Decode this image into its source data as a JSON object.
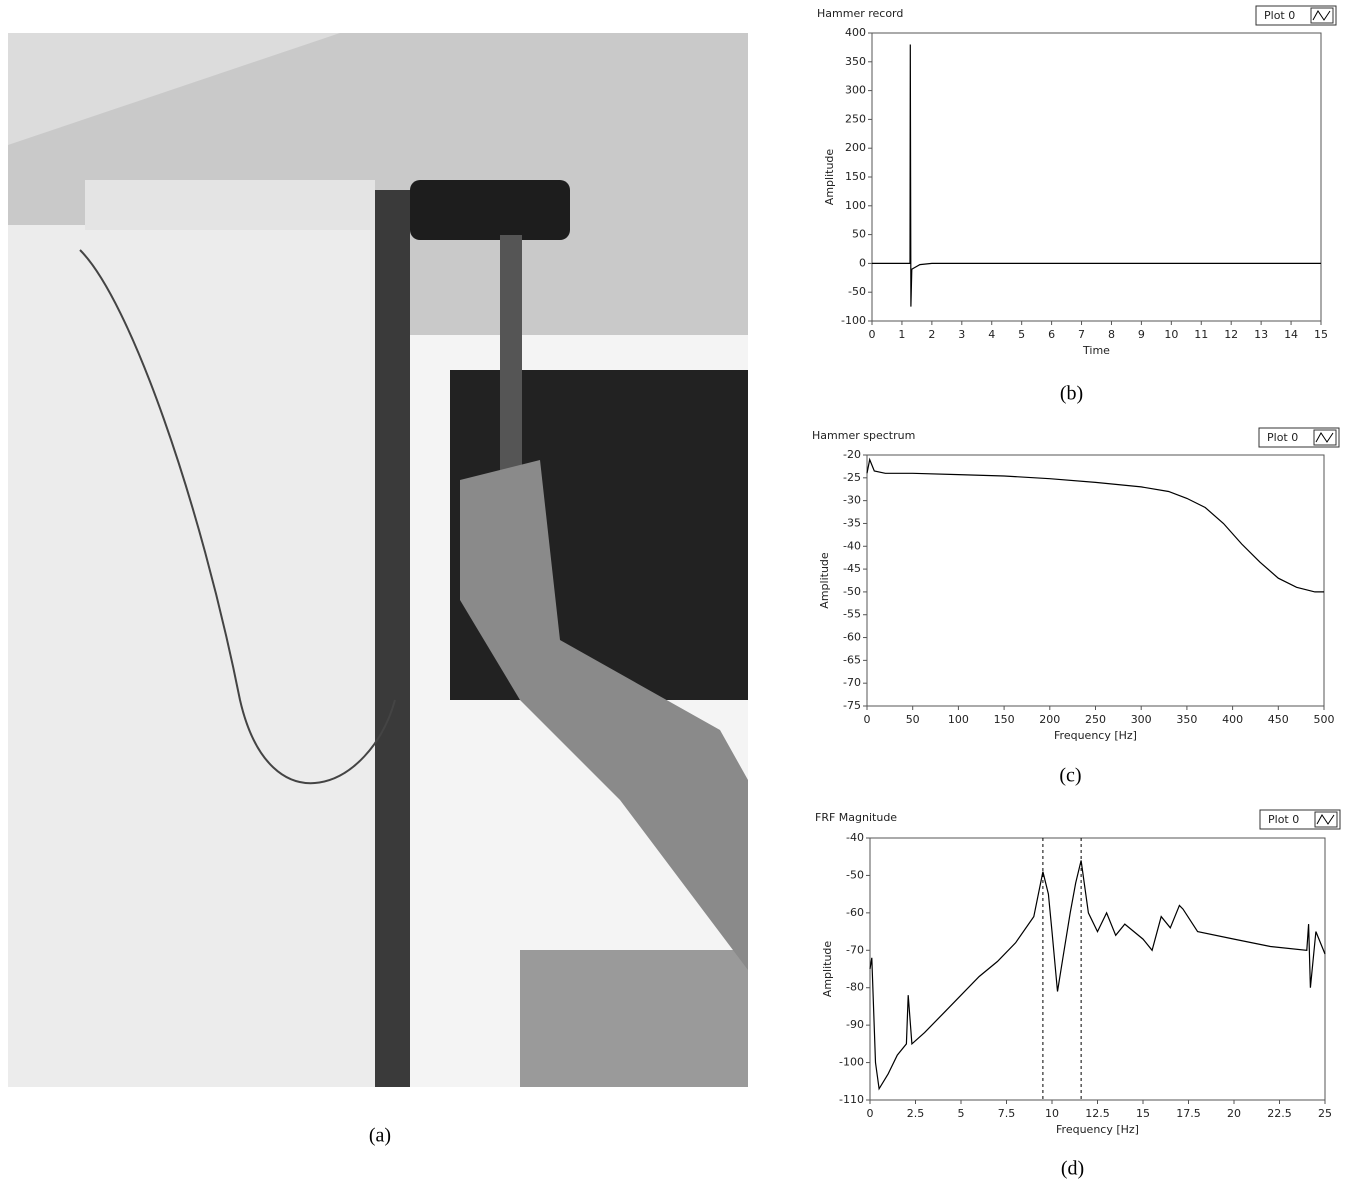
{
  "photo": {
    "caption": "(a)"
  },
  "chart_data": [
    {
      "type": "line",
      "title": "Hammer record",
      "caption": "(b)",
      "xlabel": "Time",
      "ylabel": "Amplitude",
      "x": [
        0,
        1.2,
        1.27,
        1.28,
        1.29,
        1.3,
        1.33,
        1.4,
        1.6,
        2,
        15
      ],
      "series": [
        {
          "name": "Plot 0",
          "color": "#000000",
          "values": [
            0,
            0,
            0,
            380,
            150,
            -75,
            -10,
            -8,
            -2,
            0,
            0
          ]
        }
      ],
      "xlim": [
        0,
        15
      ],
      "xticks": [
        0,
        1,
        2,
        3,
        4,
        5,
        6,
        7,
        8,
        9,
        10,
        11,
        12,
        13,
        14,
        15
      ],
      "ylim": [
        -100,
        400
      ],
      "yticks": [
        -100,
        -50,
        0,
        50,
        100,
        150,
        200,
        250,
        300,
        350,
        400
      ]
    },
    {
      "type": "line",
      "title": "Hammer spectrum",
      "caption": "(c)",
      "xlabel": "Frequency [Hz]",
      "ylabel": "Amplitude",
      "x": [
        0,
        3,
        8,
        20,
        50,
        100,
        150,
        200,
        250,
        300,
        330,
        350,
        370,
        390,
        410,
        430,
        450,
        470,
        490,
        500
      ],
      "series": [
        {
          "name": "Plot 0",
          "color": "#000000",
          "values": [
            -24,
            -21,
            -23.5,
            -24,
            -24,
            -24.3,
            -24.6,
            -25.2,
            -26,
            -27,
            -28,
            -29.5,
            -31.5,
            -35,
            -39.5,
            -43.5,
            -47,
            -49,
            -50,
            -50
          ]
        }
      ],
      "xlim": [
        0,
        500
      ],
      "xticks": [
        0,
        50,
        100,
        150,
        200,
        250,
        300,
        350,
        400,
        450,
        500
      ],
      "ylim": [
        -75,
        -20
      ],
      "yticks": [
        -75,
        -70,
        -65,
        -60,
        -55,
        -50,
        -45,
        -40,
        -35,
        -30,
        -25,
        -20
      ]
    },
    {
      "type": "line",
      "title": "FRF Magnitude",
      "caption": "(d)",
      "xlabel": "Frequency [Hz]",
      "ylabel": "Amplitude",
      "x": [
        0,
        0.1,
        0.3,
        0.5,
        1,
        1.5,
        2,
        2.1,
        2.3,
        3,
        4,
        5,
        6,
        7,
        8,
        9,
        9.5,
        9.8,
        10,
        10.3,
        10.6,
        11,
        11.3,
        11.6,
        12,
        12.5,
        13,
        13.5,
        14,
        15,
        15.5,
        16,
        16.5,
        17,
        17.2,
        18,
        20,
        22,
        24,
        24.1,
        24.2,
        24.5,
        25
      ],
      "series": [
        {
          "name": "Plot 0",
          "color": "#000000",
          "values": [
            -75,
            -72,
            -100,
            -107,
            -103,
            -98,
            -95,
            -82,
            -95,
            -92,
            -87,
            -82,
            -77,
            -73,
            -68,
            -61,
            -49,
            -55,
            -65,
            -81,
            -72,
            -60,
            -52,
            -46,
            -60,
            -65,
            -60,
            -66,
            -63,
            -67,
            -70,
            -61,
            -64,
            -58,
            -59,
            -65,
            -67,
            -69,
            -70,
            -63,
            -80,
            -65,
            -71
          ]
        }
      ],
      "markers": [
        9.5,
        11.6
      ],
      "xlim": [
        0,
        25
      ],
      "xticks": [
        0,
        2.5,
        5,
        7.5,
        10,
        12.5,
        15,
        17.5,
        20,
        22.5,
        25
      ],
      "ylim": [
        -110,
        -40
      ],
      "yticks": [
        -110,
        -100,
        -90,
        -80,
        -70,
        -60,
        -50,
        -40
      ]
    }
  ]
}
